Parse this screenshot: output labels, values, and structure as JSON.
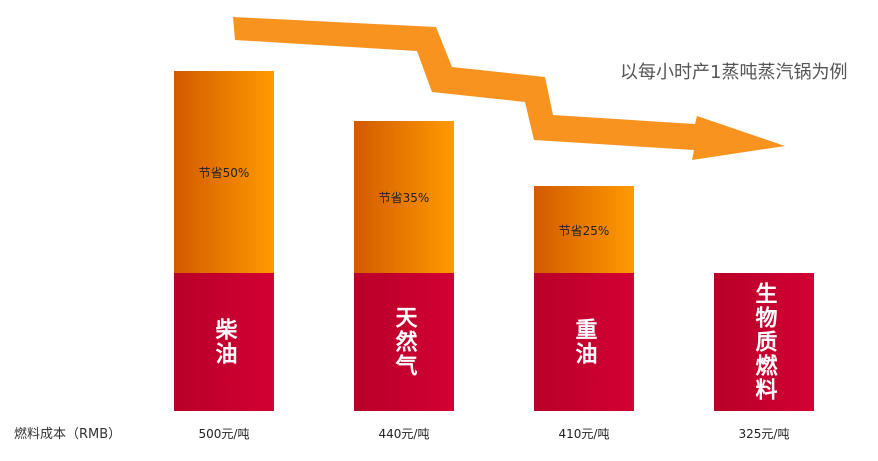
{
  "note_text": "以每小时产1蒸吨蒸汽锅为例",
  "cost_label": "燃料成本（RMB）",
  "bars": [
    {
      "name": "柴油",
      "saving": "节省50%",
      "cost": "500元/吨"
    },
    {
      "name": "天然气",
      "saving": "节省35%",
      "cost": "440元/吨"
    },
    {
      "name": "重油",
      "saving": "节省25%",
      "cost": "410元/吨"
    },
    {
      "name": "生物质燃料",
      "cost": "325元/吨"
    }
  ]
}
